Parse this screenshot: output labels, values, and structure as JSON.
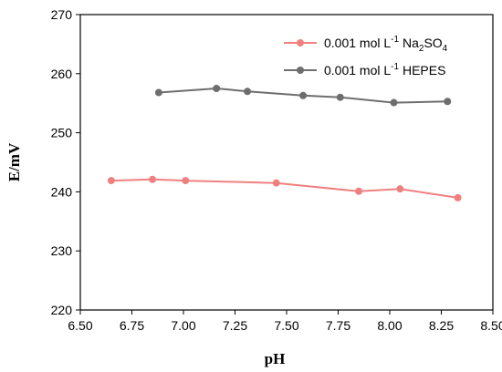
{
  "chart_data": {
    "type": "line",
    "xlabel": "pH",
    "ylabel": "E/mV",
    "xlim": [
      6.5,
      8.5
    ],
    "ylim": [
      220,
      270
    ],
    "x_ticks": [
      "6.50",
      "6.75",
      "7.00",
      "7.25",
      "7.50",
      "7.75",
      "8.00",
      "8.25",
      "8.50"
    ],
    "y_ticks": [
      "220",
      "230",
      "240",
      "250",
      "260",
      "270"
    ],
    "grid": false,
    "legend_position": "top-right",
    "series": [
      {
        "legend": {
          "pre": "0.001 mol L",
          "sup": "-1",
          "mid": " Na",
          "sub1": "2",
          "mid2": "SO",
          "sub2": "4"
        },
        "color": "#f08080",
        "x": [
          6.65,
          6.85,
          7.01,
          7.45,
          7.85,
          8.05,
          8.33
        ],
        "y": [
          241.9,
          242.1,
          241.9,
          241.5,
          240.1,
          240.5,
          239.0
        ]
      },
      {
        "legend": {
          "pre": "0.001 mol L",
          "sup": "-1",
          "mid": " HEPES"
        },
        "color": "#6e6e6e",
        "x": [
          6.88,
          7.16,
          7.31,
          7.58,
          7.76,
          8.02,
          8.28
        ],
        "y": [
          256.8,
          257.5,
          257.0,
          256.3,
          256.0,
          255.1,
          255.3
        ]
      }
    ]
  }
}
